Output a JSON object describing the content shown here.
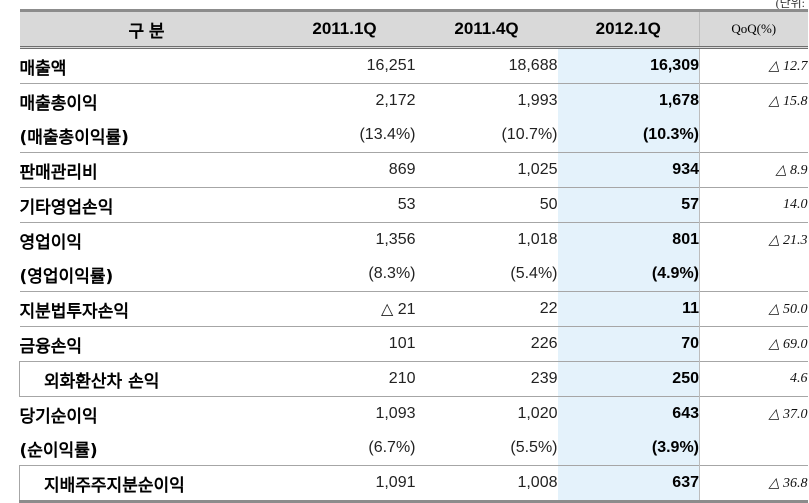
{
  "unit_label": "(단위:",
  "header": {
    "category": "구          분",
    "col1": "2011.1Q",
    "col2": "2011.4Q",
    "col3": "2012.1Q",
    "col4": "QoQ(%)"
  },
  "rows": [
    {
      "label": "매출액",
      "v1": "16,251",
      "v2": "18,688",
      "v3": "16,309",
      "qoq": "△ 12.7"
    },
    {
      "label": "매출총이익",
      "v1": "2,172",
      "v2": "1,993",
      "v3": "1,678",
      "qoq": "△ 15.8"
    },
    {
      "label": "(매출총이익률)",
      "v1": "(13.4%)",
      "v2": "(10.7%)",
      "v3": "(10.3%)",
      "qoq": ""
    },
    {
      "label": "판매관리비",
      "v1": "869",
      "v2": "1,025",
      "v3": "934",
      "qoq": "△ 8.9"
    },
    {
      "label": "기타영업손익",
      "v1": "53",
      "v2": "50",
      "v3": "57",
      "qoq": "14.0"
    },
    {
      "label": "영업이익",
      "v1": "1,356",
      "v2": "1,018",
      "v3": "801",
      "qoq": "△ 21.3"
    },
    {
      "label": "(영업이익률)",
      "v1": "(8.3%)",
      "v2": "(5.4%)",
      "v3": "(4.9%)",
      "qoq": ""
    },
    {
      "label": "지분법투자손익",
      "v1": "△ 21",
      "v2": "22",
      "v3": "11",
      "qoq": "△ 50.0"
    },
    {
      "label": "금융손익",
      "v1": "101",
      "v2": "226",
      "v3": "70",
      "qoq": "△ 69.0"
    },
    {
      "label": "외화환산차 손익",
      "v1": "210",
      "v2": "239",
      "v3": "250",
      "qoq": "4.6"
    },
    {
      "label": "당기순이익",
      "v1": "1,093",
      "v2": "1,020",
      "v3": "643",
      "qoq": "△ 37.0"
    },
    {
      "label": "(순이익률)",
      "v1": "(6.7%)",
      "v2": "(5.5%)",
      "v3": "(3.9%)",
      "qoq": ""
    },
    {
      "label": "지배주주지분순이익",
      "v1": "1,091",
      "v2": "1,008",
      "v3": "637",
      "qoq": "△ 36.8"
    }
  ]
}
